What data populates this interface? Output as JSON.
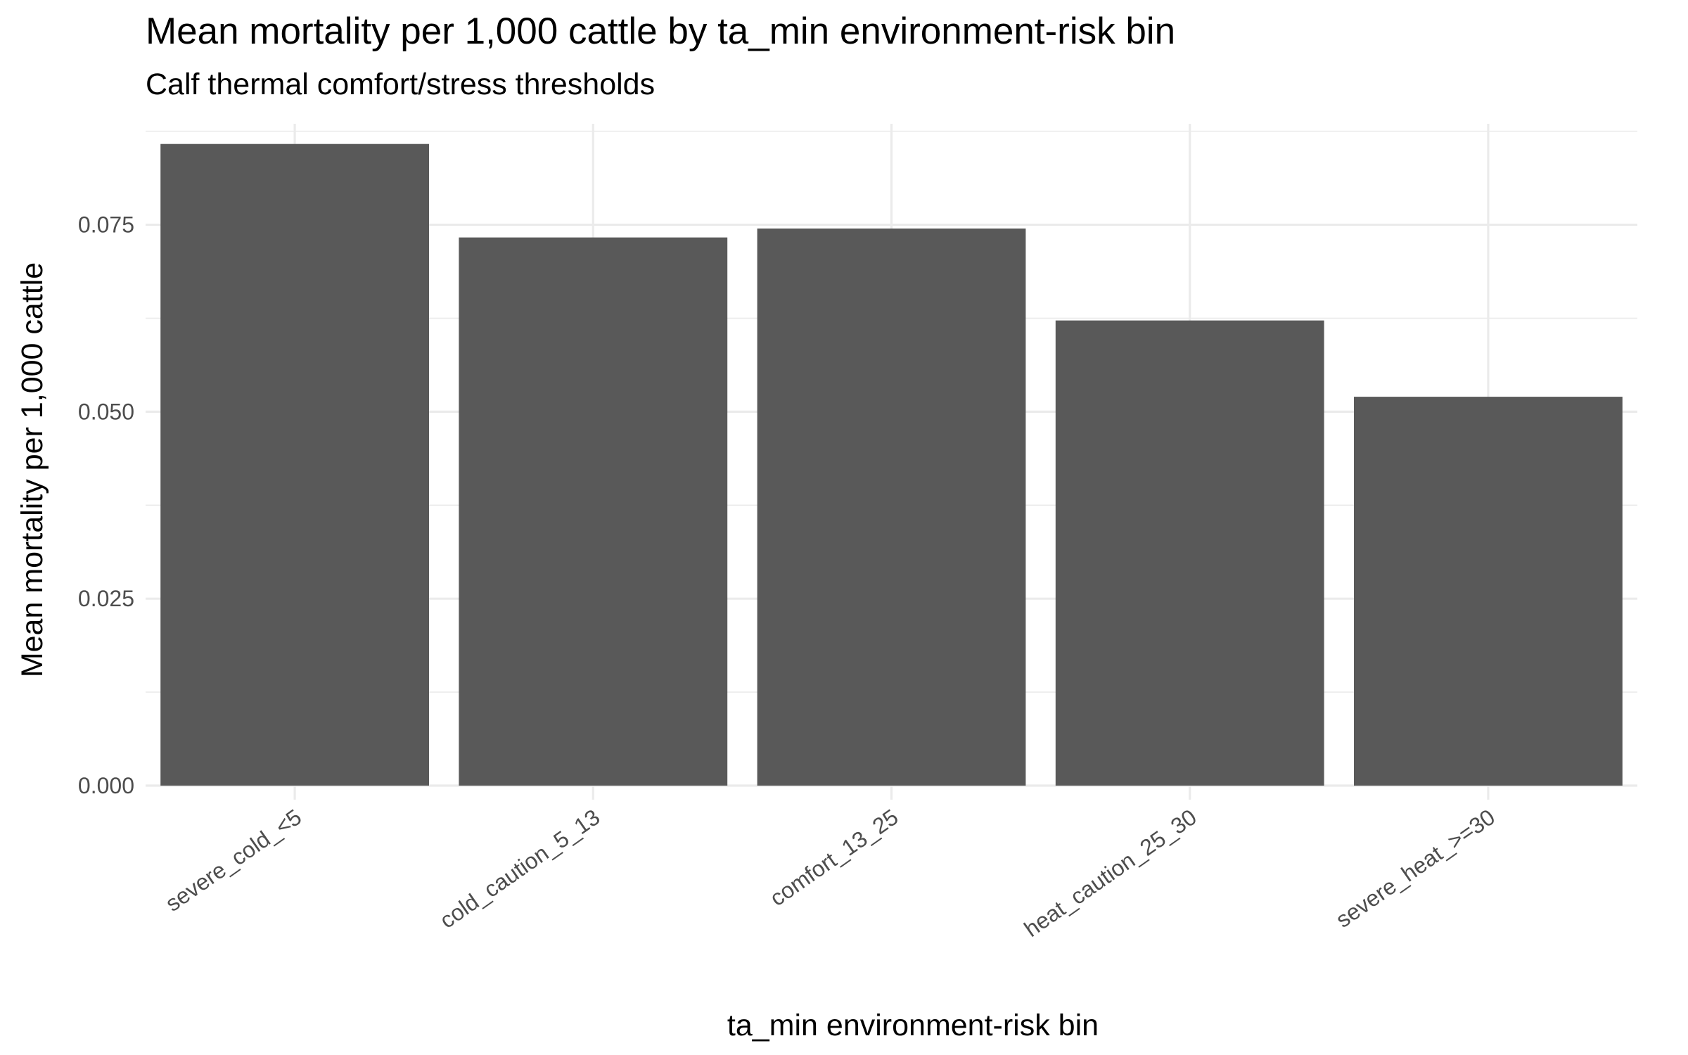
{
  "chart_data": {
    "type": "bar",
    "title": "Mean mortality per 1,000 cattle by ta_min environment-risk bin",
    "subtitle": "Calf thermal comfort/stress thresholds",
    "xlabel": "ta_min environment-risk bin",
    "ylabel": "Mean mortality per 1,000 cattle",
    "categories": [
      "severe_cold_<5",
      "cold_caution_5_13",
      "comfort_13_25",
      "heat_caution_25_30",
      "severe_heat_>=30"
    ],
    "values": [
      0.0858,
      0.0733,
      0.0745,
      0.0622,
      0.052
    ],
    "ylim": [
      0,
      0.0885
    ],
    "yticks": [
      0.0,
      0.025,
      0.05,
      0.075
    ],
    "ytick_labels": [
      "0.000",
      "0.025",
      "0.050",
      "0.075"
    ],
    "grid": true,
    "legend": "none",
    "bar_color": "#595959",
    "grid_color": "#ebebeb"
  }
}
